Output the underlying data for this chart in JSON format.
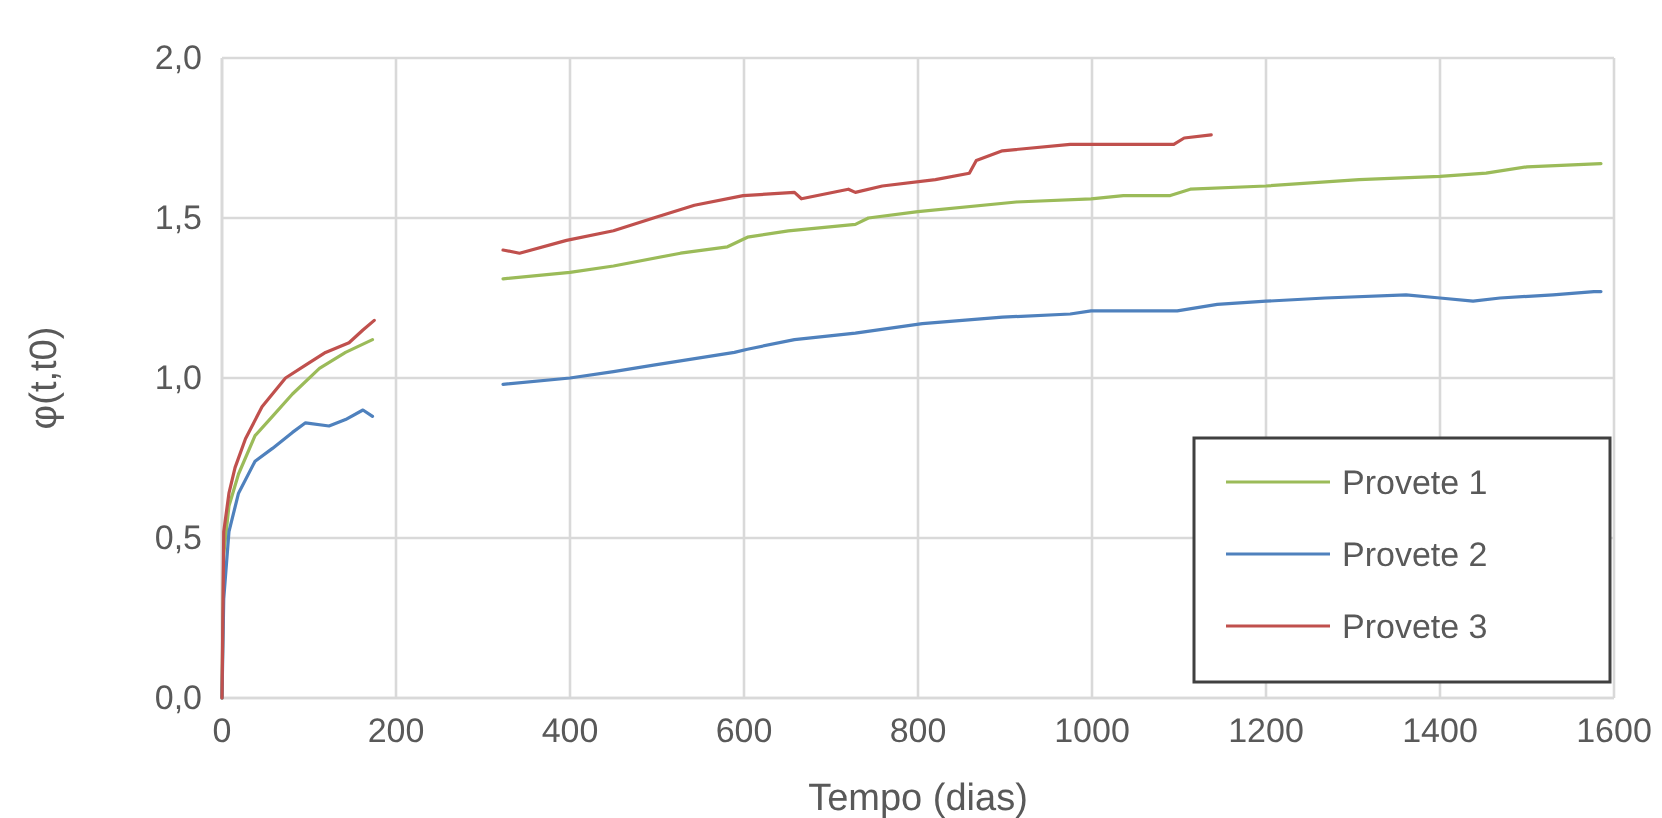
{
  "chart_data": {
    "type": "line",
    "xlabel": "Tempo (dias)",
    "ylabel": "φ(t,t0)",
    "xlim": [
      0,
      1600
    ],
    "xticks": [
      0,
      200,
      400,
      600,
      800,
      1000,
      1200,
      1400,
      1600
    ],
    "ylim": [
      0,
      2
    ],
    "yticks": [
      {
        "value": 0,
        "label": "0,0"
      },
      {
        "value": 0.5,
        "label": "0,5"
      },
      {
        "value": 1,
        "label": "1,0"
      },
      {
        "value": 1.5,
        "label": "1,5"
      },
      {
        "value": 2,
        "label": "2,0"
      }
    ],
    "grid": true,
    "legend": "bottom right",
    "line_style": "solid",
    "marker": "none",
    "series": [
      {
        "name": "Provete 1",
        "color": "#9bbb59",
        "x": [
          0,
          2,
          8,
          19,
          38,
          58,
          81,
          112,
          142,
          173,
          250,
          323,
          400,
          450,
          527,
          581,
          604,
          651,
          728,
          743,
          800,
          913,
          999,
          1036,
          1090,
          1113,
          1200,
          1307,
          1400,
          1453,
          1500,
          1585
        ],
        "values": [
          0,
          0.45,
          0.6,
          0.7,
          0.82,
          0.88,
          0.95,
          1.03,
          1.08,
          1.12,
          null,
          1.31,
          1.33,
          1.35,
          1.39,
          1.41,
          1.44,
          1.46,
          1.48,
          1.5,
          1.52,
          1.55,
          1.56,
          1.57,
          1.57,
          1.59,
          1.6,
          1.62,
          1.63,
          1.64,
          1.66,
          1.67
        ]
      },
      {
        "name": "Provete 2",
        "color": "#4f81bd",
        "x": [
          0,
          2,
          8,
          19,
          38,
          58,
          81,
          96,
          123,
          142,
          162,
          173,
          250,
          323,
          400,
          450,
          496,
          589,
          604,
          658,
          728,
          805,
          897,
          975,
          999,
          1067,
          1098,
          1144,
          1200,
          1268,
          1361,
          1400,
          1438,
          1469,
          1530,
          1577,
          1585
        ],
        "values": [
          0,
          0.31,
          0.52,
          0.64,
          0.74,
          0.78,
          0.83,
          0.86,
          0.85,
          0.87,
          0.9,
          0.88,
          null,
          0.98,
          1.0,
          1.02,
          1.04,
          1.08,
          1.09,
          1.12,
          1.14,
          1.17,
          1.19,
          1.2,
          1.21,
          1.21,
          1.21,
          1.23,
          1.24,
          1.25,
          1.26,
          1.25,
          1.24,
          1.25,
          1.26,
          1.27,
          1.27
        ]
      },
      {
        "name": "Provete 3",
        "color": "#c0504d",
        "x": [
          0,
          2,
          8,
          15,
          27,
          46,
          73,
          96,
          119,
          146,
          162,
          175,
          250,
          323,
          342,
          396,
          450,
          496,
          543,
          599,
          658,
          666,
          720,
          728,
          759,
          820,
          859,
          867,
          897,
          975,
          990,
          1067,
          1094,
          1106,
          1137
        ],
        "values": [
          0,
          0.52,
          0.64,
          0.72,
          0.81,
          0.91,
          1.0,
          1.04,
          1.08,
          1.11,
          1.15,
          1.18,
          null,
          1.4,
          1.39,
          1.43,
          1.46,
          1.5,
          1.54,
          1.57,
          1.58,
          1.56,
          1.59,
          1.58,
          1.6,
          1.62,
          1.64,
          1.68,
          1.71,
          1.73,
          1.73,
          1.73,
          1.73,
          1.75,
          1.76
        ]
      }
    ]
  }
}
